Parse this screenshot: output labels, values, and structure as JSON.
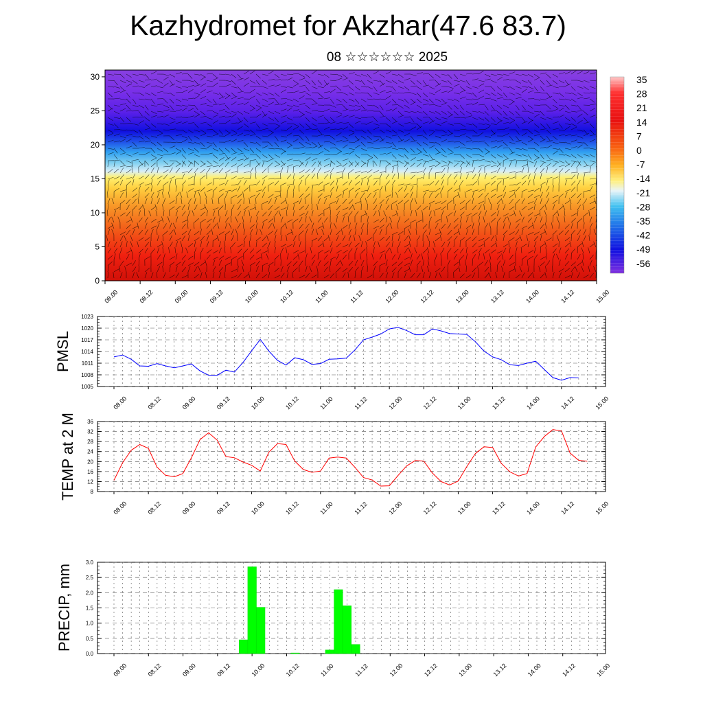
{
  "title": "Kazhydromet for Akzhar(47.6 83.7)",
  "subtitle": "08 ☆☆☆☆☆☆ 2025",
  "x_tick_labels": [
    "08.00",
    "08.12",
    "09.00",
    "09.12",
    "10.00",
    "10.12",
    "11.00",
    "11.12",
    "12.00",
    "12.12",
    "13.00",
    "13.12",
    "14.00",
    "14.12",
    "15.00"
  ],
  "colorbar": {
    "labels": [
      "35",
      "28",
      "21",
      "14",
      "7",
      "0",
      "-7",
      "-14",
      "-21",
      "-28",
      "-35",
      "-42",
      "-49",
      "-56"
    ]
  },
  "chart_data": [
    {
      "type": "heatmap",
      "name": "cross-section",
      "y_ticks": [
        0,
        5,
        10,
        15,
        20,
        25,
        30
      ],
      "ylim": [
        0,
        31
      ],
      "xlim": [
        0,
        168
      ],
      "x_hours_step": 12,
      "band_limits": {
        "warm_top_km": [
          15,
          15,
          15,
          14.5,
          15,
          15,
          15,
          14.5,
          14,
          15,
          14.5,
          15,
          14.5,
          15,
          15
        ],
        "cold_base_km": [
          21,
          21,
          21,
          20.5,
          21,
          21,
          21,
          21,
          20,
          21,
          21,
          21,
          21,
          21,
          21
        ]
      }
    },
    {
      "type": "line",
      "ylabel": "PMSL",
      "ylim": [
        1005,
        1023
      ],
      "y_ticks": [
        1005,
        1008,
        1011,
        1014,
        1017,
        1020,
        1023
      ],
      "color": "#0000ff",
      "x": [
        0,
        3,
        6,
        9,
        12,
        15,
        18,
        21,
        24,
        27,
        30,
        33,
        36,
        39,
        42,
        45,
        48,
        51,
        54,
        57,
        60,
        63,
        66,
        69,
        72,
        75,
        78,
        81,
        84,
        87,
        90,
        93,
        96,
        99,
        102,
        105,
        108,
        111,
        114,
        117,
        120,
        123,
        126,
        129,
        132,
        135,
        138,
        141,
        144,
        147,
        150,
        153,
        156,
        159,
        162
      ],
      "values": [
        1012.6,
        1013.1,
        1012.0,
        1010.3,
        1010.2,
        1010.9,
        1010.3,
        1009.8,
        1010.3,
        1010.8,
        1009.0,
        1007.9,
        1007.9,
        1009.2,
        1008.7,
        1011.2,
        1014.2,
        1017.1,
        1014.1,
        1011.7,
        1010.5,
        1012.4,
        1011.9,
        1010.7,
        1010.9,
        1012.0,
        1012.1,
        1012.3,
        1014.4,
        1017.0,
        1017.7,
        1018.5,
        1019.8,
        1020.2,
        1019.4,
        1018.3,
        1018.3,
        1019.8,
        1019.3,
        1018.6,
        1018.5,
        1018.4,
        1016.5,
        1014.1,
        1012.6,
        1011.9,
        1010.6,
        1010.4,
        1011.0,
        1011.5,
        1009.4,
        1007.3,
        1006.6,
        1007.3,
        1007.2
      ]
    },
    {
      "type": "line",
      "ylabel": "TEMP at 2 M",
      "ylim": [
        8,
        36
      ],
      "y_ticks": [
        8,
        12,
        16,
        20,
        24,
        28,
        32,
        36
      ],
      "color": "#ff0000",
      "x": [
        0,
        3,
        6,
        9,
        12,
        15,
        18,
        21,
        24,
        27,
        30,
        33,
        36,
        39,
        42,
        45,
        48,
        51,
        54,
        57,
        60,
        63,
        66,
        69,
        72,
        75,
        78,
        81,
        84,
        87,
        90,
        93,
        96,
        99,
        102,
        105,
        108,
        111,
        114,
        117,
        120,
        123,
        126,
        129,
        132,
        135,
        138,
        141,
        144,
        147,
        150,
        153,
        156,
        159,
        162,
        165
      ],
      "values": [
        12.5,
        19.5,
        24.5,
        26.8,
        25.3,
        17.8,
        14.5,
        13.9,
        15.2,
        21.5,
        28.8,
        31.5,
        28.5,
        22.0,
        21.5,
        19.8,
        18.5,
        16.2,
        23.7,
        27.2,
        26.8,
        20.2,
        16.8,
        15.7,
        16.2,
        21.4,
        21.8,
        21.4,
        17.7,
        13.6,
        12.6,
        10.2,
        10.3,
        14.4,
        18.2,
        20.4,
        20.2,
        15.4,
        12.0,
        10.6,
        12.2,
        18.0,
        23.2,
        25.9,
        25.6,
        19.3,
        15.9,
        14.2,
        15.2,
        25.8,
        30.0,
        32.8,
        32.2,
        23.4,
        20.5,
        20.1
      ]
    },
    {
      "type": "bar",
      "ylabel": "PRECIP, mm",
      "ylim": [
        0,
        3.0
      ],
      "y_ticks": [
        "0.0",
        "0.5",
        "1.0",
        "1.5",
        "2.0",
        "2.5",
        "3.0"
      ],
      "color": "#00ff00",
      "bar_x": [
        45,
        48,
        51,
        63,
        75,
        78,
        81,
        84
      ],
      "values": [
        0.45,
        2.85,
        1.52,
        0.02,
        0.12,
        2.1,
        1.57,
        0.3
      ]
    }
  ]
}
